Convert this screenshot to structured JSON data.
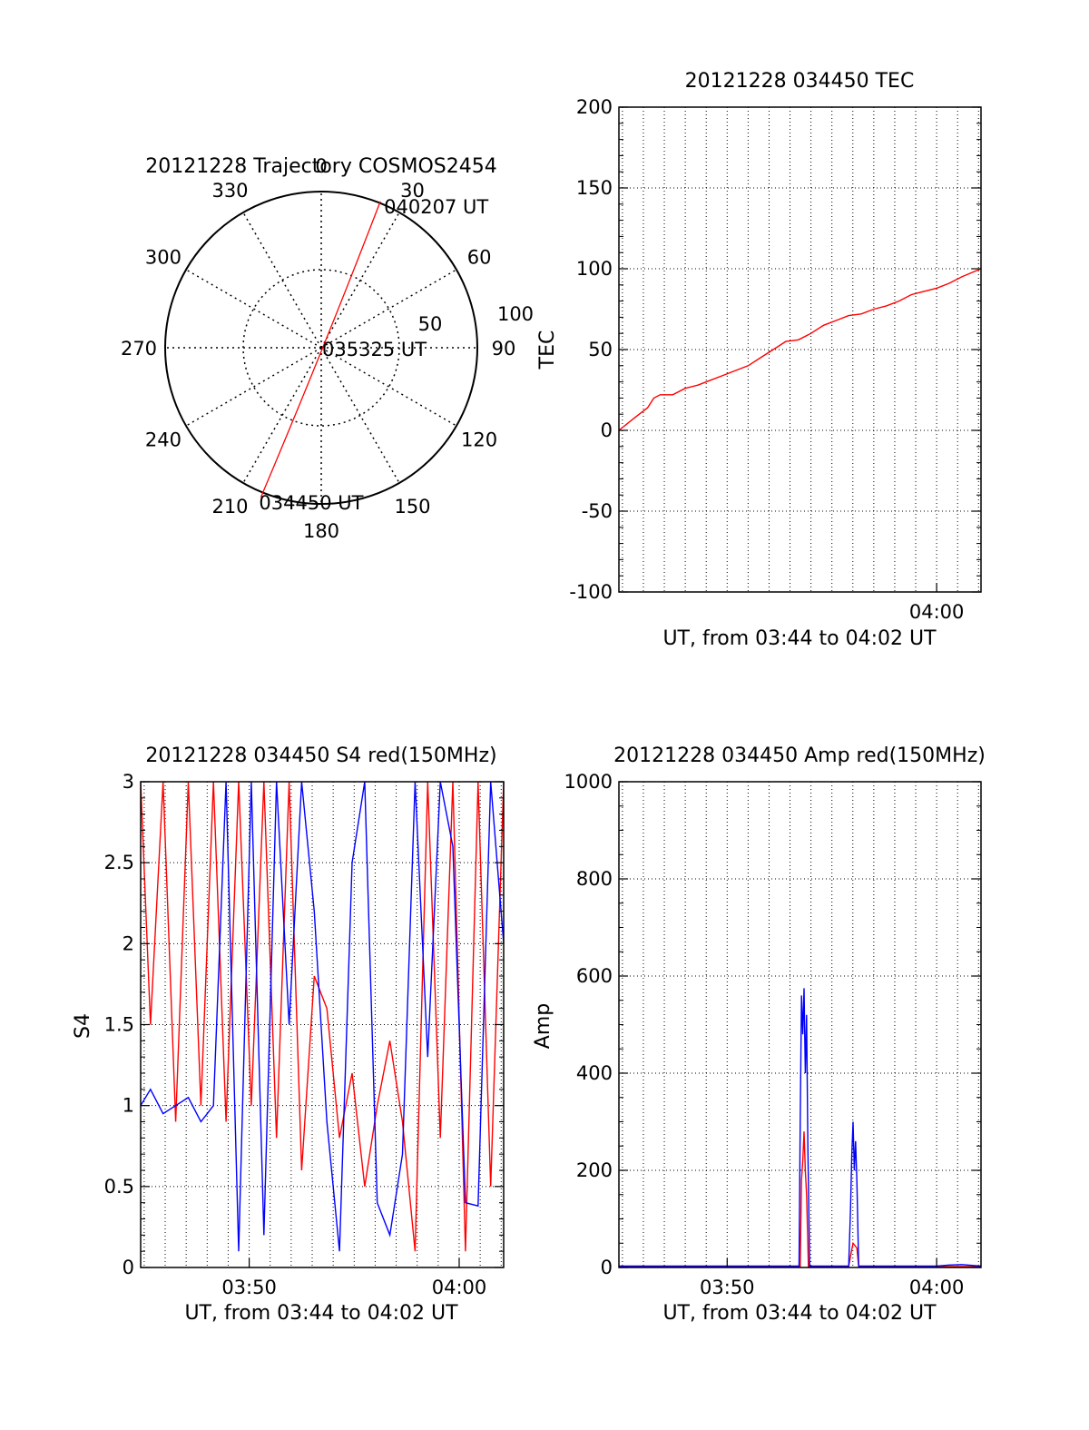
{
  "colors": {
    "red": "#ff0000",
    "blue": "#0000ff",
    "axis": "#000000",
    "grid": "#000000"
  },
  "chart_data": [
    {
      "type": "polar",
      "title": "20121228 Trajectory COSMOS2454",
      "azimuth_labels": [
        "0",
        "30",
        "60",
        "90",
        "120",
        "150",
        "180",
        "210",
        "240",
        "270",
        "300",
        "330"
      ],
      "radial_labels": [
        "50",
        "100"
      ],
      "trajectory": {
        "color": "red",
        "start": {
          "label": "034450 UT",
          "azimuth": 202,
          "zenith": 93
        },
        "mid": {
          "label": "035325 UT",
          "azimuth": 0,
          "zenith": 0
        },
        "end": {
          "label": "040207 UT",
          "azimuth": 22,
          "zenith": 91
        }
      }
    },
    {
      "type": "line",
      "title": "20121228 034450 TEC",
      "xlabel": "UT, from 03:44 to 04:02 UT",
      "ylabel": "TEC",
      "x_tick_labels": [
        "04:00"
      ],
      "y_tick_labels": [
        "200",
        "150",
        "100",
        "50",
        "0",
        "-50",
        "-100"
      ],
      "xlim": [
        3.7472,
        4.0353
      ],
      "ylim": [
        -100,
        200
      ],
      "grid": true,
      "series": [
        {
          "color": "red",
          "x": [
            3.7472,
            3.76,
            3.77,
            3.775,
            3.78,
            3.79,
            3.8,
            3.81,
            3.82,
            3.83,
            3.84,
            3.85,
            3.86,
            3.87,
            3.88,
            3.89,
            3.9,
            3.91,
            3.92,
            3.93,
            3.94,
            3.95,
            3.96,
            3.97,
            3.98,
            3.99,
            4.0,
            4.01,
            4.02,
            4.0353
          ],
          "y": [
            0,
            8,
            14,
            20,
            22,
            22,
            26,
            28,
            31,
            34,
            37,
            40,
            45,
            50,
            55,
            56,
            60,
            65,
            68,
            71,
            72,
            75,
            77,
            80,
            84,
            86,
            88,
            91,
            95,
            100
          ]
        }
      ]
    },
    {
      "type": "line",
      "title": "20121228 034450 S4 red(150MHz)",
      "xlabel": "UT, from 03:44 to 04:02 UT",
      "ylabel": "S4",
      "x_tick_labels": [
        "03:50",
        "04:00"
      ],
      "y_tick_labels": [
        "3",
        "2.5",
        "2",
        "1.5",
        "1",
        "0.5",
        "0"
      ],
      "xlim": [
        3.7472,
        4.0353
      ],
      "ylim": [
        0,
        3
      ],
      "grid": true,
      "series": [
        {
          "color": "red",
          "x": [
            3.7472,
            3.755,
            3.765,
            3.775,
            3.785,
            3.795,
            3.805,
            3.815,
            3.825,
            3.835,
            3.845,
            3.855,
            3.865,
            3.875,
            3.885,
            3.895,
            3.905,
            3.915,
            3.925,
            3.935,
            3.945,
            3.955,
            3.965,
            3.975,
            3.985,
            3.995,
            4.005,
            4.015,
            4.025,
            4.0353
          ],
          "y": [
            3,
            1.5,
            3,
            0.9,
            3,
            1.0,
            3,
            0.9,
            3,
            1.0,
            3,
            0.8,
            3,
            0.6,
            1.8,
            1.6,
            0.8,
            1.2,
            0.5,
            1.0,
            1.4,
            0.9,
            0.1,
            3,
            0.8,
            3,
            0.1,
            3,
            0.5,
            3
          ]
        },
        {
          "color": "blue",
          "x": [
            3.7472,
            3.755,
            3.765,
            3.775,
            3.785,
            3.795,
            3.805,
            3.815,
            3.825,
            3.835,
            3.845,
            3.855,
            3.865,
            3.875,
            3.885,
            3.895,
            3.905,
            3.915,
            3.925,
            3.935,
            3.945,
            3.955,
            3.965,
            3.975,
            3.985,
            3.995,
            4.005,
            4.015,
            4.025,
            4.0353
          ],
          "y": [
            1.0,
            1.1,
            0.95,
            1.0,
            1.05,
            0.9,
            1.0,
            3,
            0.1,
            3,
            0.2,
            3,
            1.5,
            3,
            2.2,
            0.9,
            0.1,
            2.5,
            3,
            0.4,
            0.2,
            0.7,
            3,
            1.3,
            3,
            2.6,
            0.4,
            0.38,
            3,
            2.0
          ]
        }
      ]
    },
    {
      "type": "line",
      "title": "20121228 034450 Amp red(150MHz)",
      "xlabel": "UT, from 03:44 to 04:02 UT",
      "ylabel": "Amp",
      "x_tick_labels": [
        "03:50",
        "04:00"
      ],
      "y_tick_labels": [
        "1000",
        "800",
        "600",
        "400",
        "200",
        "0"
      ],
      "xlim": [
        3.7472,
        4.0353
      ],
      "ylim": [
        0,
        1000
      ],
      "grid": true,
      "series": [
        {
          "color": "red",
          "x": [
            3.7472,
            3.85,
            3.8915,
            3.8925,
            3.8935,
            3.8945,
            3.8955,
            3.8965,
            3.898,
            3.93,
            3.932,
            3.9335,
            3.935,
            3.9365,
            3.938,
            3.95,
            4.0353
          ],
          "y": [
            2,
            2,
            2,
            180,
            220,
            280,
            200,
            150,
            2,
            2,
            30,
            50,
            45,
            40,
            2,
            2,
            2
          ]
        },
        {
          "color": "blue",
          "x": [
            3.7472,
            3.85,
            3.8905,
            3.8915,
            3.8925,
            3.8935,
            3.8945,
            3.8955,
            3.8965,
            3.8975,
            3.899,
            3.93,
            3.9315,
            3.9325,
            3.9335,
            3.9345,
            3.9355,
            3.9365,
            3.938,
            3.95,
            3.99,
            4.0,
            4.01,
            4.02,
            4.0353
          ],
          "y": [
            3,
            3,
            3,
            300,
            560,
            480,
            575,
            400,
            520,
            250,
            3,
            3,
            120,
            230,
            300,
            200,
            260,
            180,
            3,
            3,
            3,
            3,
            5,
            6,
            3
          ]
        }
      ]
    }
  ]
}
